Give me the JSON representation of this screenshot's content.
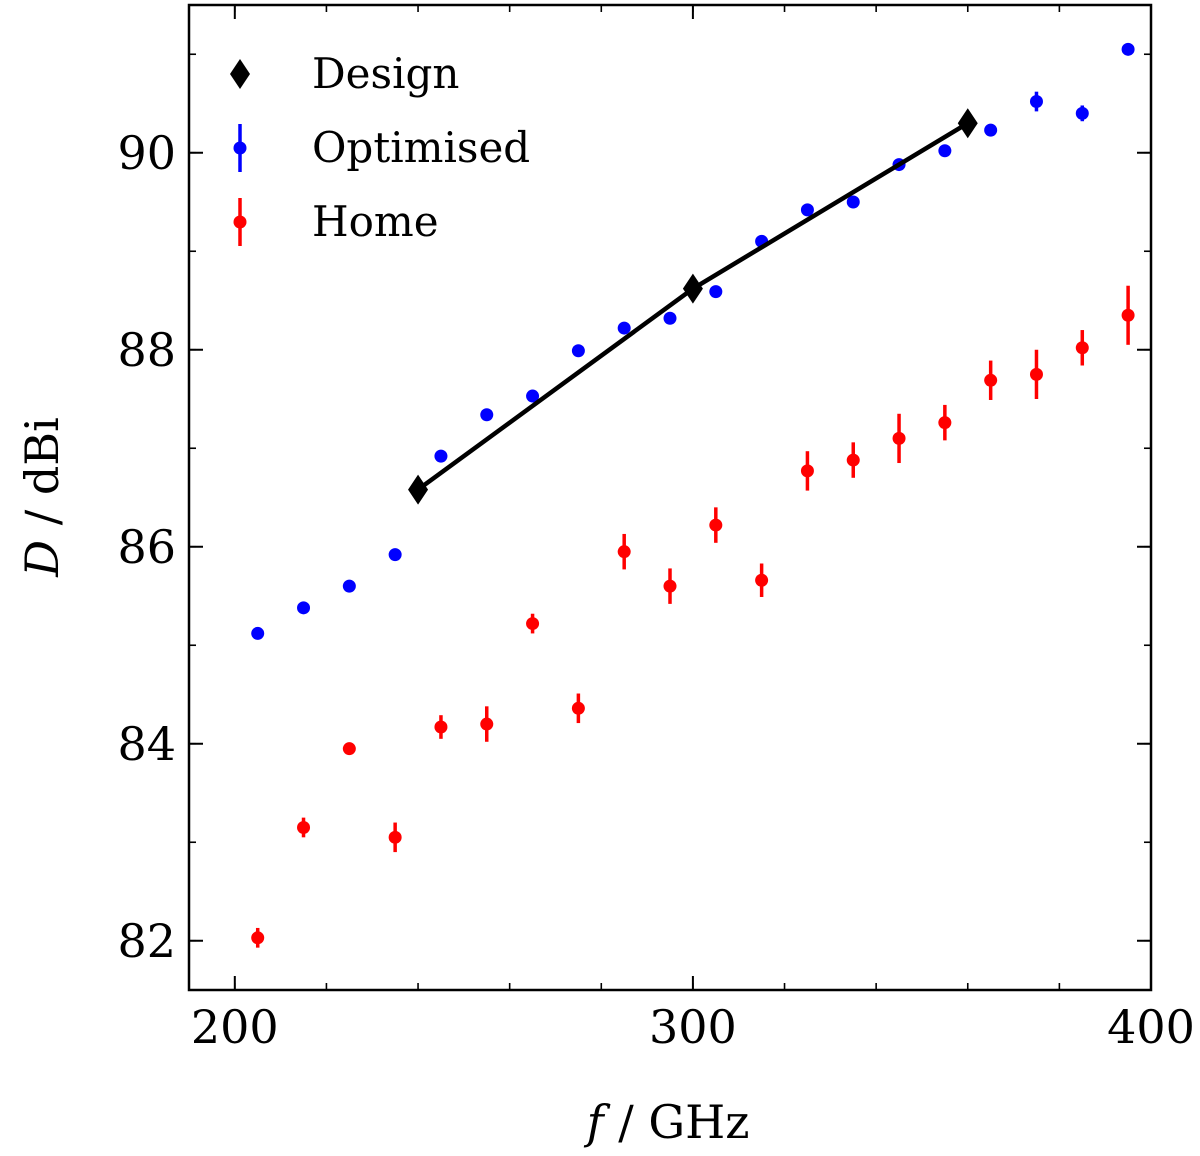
{
  "chart_data": {
    "type": "scatter",
    "title": "",
    "xlabel_var": "f",
    "xlabel_unit": " / GHz",
    "ylabel_var": "D",
    "ylabel_unit": " / dBi",
    "xlim": [
      190,
      400
    ],
    "ylim": [
      81.5,
      91.5
    ],
    "x_ticks": [
      {
        "value": 200,
        "label": "200"
      },
      {
        "value": 300,
        "label": "300"
      },
      {
        "value": 400,
        "label": "400"
      }
    ],
    "y_ticks": [
      {
        "value": 82,
        "label": "82"
      },
      {
        "value": 84,
        "label": "84"
      },
      {
        "value": 86,
        "label": "86"
      },
      {
        "value": 88,
        "label": "88"
      },
      {
        "value": 90,
        "label": "90"
      }
    ],
    "x_minor_step": 20,
    "y_minor_step": 1,
    "legend_position": "top-left",
    "series": [
      {
        "name": "Design",
        "color": "#000000",
        "marker": "diamond",
        "line": true,
        "x": [
          240,
          300,
          360
        ],
        "y": [
          86.58,
          88.62,
          90.3
        ]
      },
      {
        "name": "Optimised",
        "color": "#0000ff",
        "marker": "circle",
        "line": false,
        "x": [
          205,
          215,
          225,
          235,
          245,
          255,
          265,
          275,
          285,
          295,
          305,
          315,
          325,
          335,
          345,
          355,
          365,
          375,
          385,
          395
        ],
        "y": [
          85.12,
          85.38,
          85.6,
          85.92,
          86.92,
          87.34,
          87.53,
          87.99,
          88.22,
          88.32,
          88.59,
          89.1,
          89.42,
          89.5,
          89.88,
          90.02,
          90.23,
          90.52,
          90.4,
          91.05
        ],
        "err": [
          0.04,
          0.04,
          0.04,
          0.04,
          0.04,
          0.04,
          0.04,
          0.04,
          0.04,
          0.04,
          0.04,
          0.04,
          0.04,
          0.04,
          0.04,
          0.04,
          0.04,
          0.1,
          0.08,
          0.04
        ]
      },
      {
        "name": "Home",
        "color": "#ff0000",
        "marker": "circle",
        "line": false,
        "x": [
          205,
          215,
          225,
          235,
          245,
          255,
          265,
          275,
          285,
          295,
          305,
          315,
          325,
          335,
          345,
          355,
          365,
          375,
          385,
          395
        ],
        "y": [
          82.03,
          83.15,
          83.95,
          83.05,
          84.17,
          84.2,
          85.22,
          84.36,
          85.95,
          85.6,
          86.22,
          85.66,
          86.77,
          86.88,
          87.1,
          87.26,
          87.69,
          87.75,
          88.02,
          88.35
        ],
        "err": [
          0.1,
          0.1,
          0.05,
          0.15,
          0.12,
          0.18,
          0.1,
          0.15,
          0.18,
          0.18,
          0.18,
          0.17,
          0.2,
          0.18,
          0.25,
          0.18,
          0.2,
          0.25,
          0.18,
          0.3
        ]
      }
    ]
  }
}
